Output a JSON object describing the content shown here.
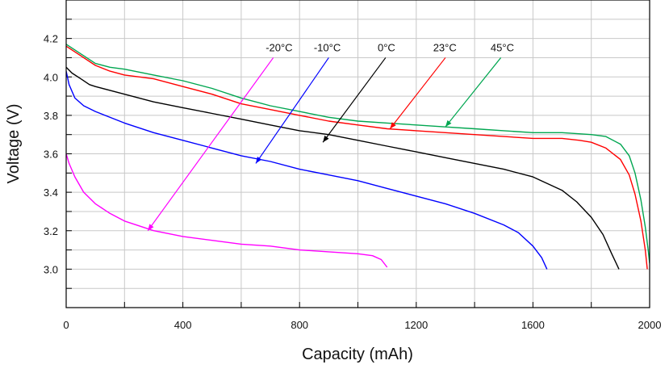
{
  "chart_data": {
    "type": "line",
    "xlabel": "Capacity (mAh)",
    "ylabel": "Voltage (V)",
    "xlim": [
      0,
      2000
    ],
    "ylim": [
      2.8,
      4.4
    ],
    "x_ticks": [
      0,
      400,
      800,
      1200,
      1600,
      2000
    ],
    "x_tick_labels": [
      "0",
      "400",
      "800",
      "1200",
      "1600",
      "2000"
    ],
    "y_ticks": [
      3.0,
      3.2,
      3.4,
      3.6,
      3.8,
      4.0,
      4.2
    ],
    "y_tick_labels": [
      "3.0",
      "3.2",
      "3.4",
      "3.6",
      "3.8",
      "4.0",
      "4.2"
    ],
    "grid": true,
    "series": [
      {
        "name": "-20°C",
        "color": "#ff00ff",
        "points": [
          [
            0,
            3.6
          ],
          [
            10,
            3.55
          ],
          [
            30,
            3.48
          ],
          [
            60,
            3.4
          ],
          [
            100,
            3.34
          ],
          [
            150,
            3.29
          ],
          [
            200,
            3.25
          ],
          [
            300,
            3.2
          ],
          [
            400,
            3.17
          ],
          [
            500,
            3.15
          ],
          [
            600,
            3.13
          ],
          [
            700,
            3.12
          ],
          [
            800,
            3.1
          ],
          [
            900,
            3.09
          ],
          [
            1000,
            3.08
          ],
          [
            1050,
            3.07
          ],
          [
            1080,
            3.05
          ],
          [
            1100,
            3.01
          ]
        ]
      },
      {
        "name": "-10°C",
        "color": "#0000ff",
        "points": [
          [
            0,
            4.03
          ],
          [
            10,
            3.96
          ],
          [
            30,
            3.89
          ],
          [
            60,
            3.85
          ],
          [
            100,
            3.82
          ],
          [
            200,
            3.76
          ],
          [
            300,
            3.71
          ],
          [
            400,
            3.67
          ],
          [
            500,
            3.63
          ],
          [
            600,
            3.59
          ],
          [
            700,
            3.56
          ],
          [
            800,
            3.52
          ],
          [
            900,
            3.49
          ],
          [
            1000,
            3.46
          ],
          [
            1100,
            3.42
          ],
          [
            1200,
            3.38
          ],
          [
            1300,
            3.34
          ],
          [
            1400,
            3.29
          ],
          [
            1500,
            3.23
          ],
          [
            1550,
            3.19
          ],
          [
            1600,
            3.12
          ],
          [
            1630,
            3.06
          ],
          [
            1648,
            3.0
          ]
        ]
      },
      {
        "name": "0°C",
        "color": "#000000",
        "points": [
          [
            0,
            4.05
          ],
          [
            20,
            4.02
          ],
          [
            50,
            3.99
          ],
          [
            80,
            3.96
          ],
          [
            100,
            3.95
          ],
          [
            200,
            3.91
          ],
          [
            300,
            3.87
          ],
          [
            400,
            3.84
          ],
          [
            500,
            3.81
          ],
          [
            600,
            3.78
          ],
          [
            700,
            3.75
          ],
          [
            800,
            3.72
          ],
          [
            900,
            3.7
          ],
          [
            1000,
            3.67
          ],
          [
            1100,
            3.64
          ],
          [
            1200,
            3.61
          ],
          [
            1300,
            3.58
          ],
          [
            1400,
            3.55
          ],
          [
            1500,
            3.52
          ],
          [
            1600,
            3.48
          ],
          [
            1700,
            3.41
          ],
          [
            1750,
            3.35
          ],
          [
            1800,
            3.27
          ],
          [
            1840,
            3.18
          ],
          [
            1870,
            3.08
          ],
          [
            1895,
            3.0
          ]
        ]
      },
      {
        "name": "23°C",
        "color": "#ff0000",
        "points": [
          [
            0,
            4.16
          ],
          [
            50,
            4.11
          ],
          [
            100,
            4.06
          ],
          [
            150,
            4.03
          ],
          [
            200,
            4.01
          ],
          [
            300,
            3.99
          ],
          [
            400,
            3.95
          ],
          [
            500,
            3.91
          ],
          [
            600,
            3.86
          ],
          [
            700,
            3.83
          ],
          [
            800,
            3.8
          ],
          [
            900,
            3.77
          ],
          [
            1000,
            3.75
          ],
          [
            1100,
            3.73
          ],
          [
            1200,
            3.72
          ],
          [
            1300,
            3.71
          ],
          [
            1400,
            3.7
          ],
          [
            1500,
            3.69
          ],
          [
            1600,
            3.68
          ],
          [
            1700,
            3.68
          ],
          [
            1760,
            3.67
          ],
          [
            1800,
            3.66
          ],
          [
            1850,
            3.63
          ],
          [
            1900,
            3.57
          ],
          [
            1930,
            3.49
          ],
          [
            1950,
            3.39
          ],
          [
            1970,
            3.25
          ],
          [
            1985,
            3.1
          ],
          [
            1992,
            3.0
          ]
        ]
      },
      {
        "name": "45°C",
        "color": "#00a650",
        "points": [
          [
            0,
            4.17
          ],
          [
            50,
            4.12
          ],
          [
            100,
            4.07
          ],
          [
            150,
            4.05
          ],
          [
            200,
            4.04
          ],
          [
            300,
            4.01
          ],
          [
            400,
            3.98
          ],
          [
            500,
            3.94
          ],
          [
            600,
            3.89
          ],
          [
            700,
            3.85
          ],
          [
            800,
            3.82
          ],
          [
            900,
            3.79
          ],
          [
            1000,
            3.77
          ],
          [
            1100,
            3.76
          ],
          [
            1200,
            3.75
          ],
          [
            1300,
            3.74
          ],
          [
            1400,
            3.73
          ],
          [
            1500,
            3.72
          ],
          [
            1600,
            3.71
          ],
          [
            1700,
            3.71
          ],
          [
            1800,
            3.7
          ],
          [
            1850,
            3.69
          ],
          [
            1900,
            3.65
          ],
          [
            1930,
            3.59
          ],
          [
            1950,
            3.5
          ],
          [
            1970,
            3.36
          ],
          [
            1985,
            3.22
          ],
          [
            1995,
            3.1
          ],
          [
            2000,
            3.03
          ]
        ]
      }
    ],
    "annotations": [
      {
        "text": "-20°C",
        "color": "#ff00ff",
        "label_at": [
          730,
          4.12
        ],
        "arrow_from": [
          710,
          4.1
        ],
        "arrow_to": [
          280,
          3.2
        ]
      },
      {
        "text": "-10°C",
        "color": "#0000ff",
        "label_at": [
          895,
          4.12
        ],
        "arrow_from": [
          900,
          4.1
        ],
        "arrow_to": [
          650,
          3.55
        ]
      },
      {
        "text": "0°C",
        "color": "#000000",
        "label_at": [
          1098,
          4.12
        ],
        "arrow_from": [
          1095,
          4.1
        ],
        "arrow_to": [
          880,
          3.66
        ]
      },
      {
        "text": "23°C",
        "color": "#ff0000",
        "label_at": [
          1298,
          4.12
        ],
        "arrow_from": [
          1300,
          4.1
        ],
        "arrow_to": [
          1110,
          3.73
        ]
      },
      {
        "text": "45°C",
        "color": "#00a650",
        "label_at": [
          1495,
          4.12
        ],
        "arrow_from": [
          1490,
          4.1
        ],
        "arrow_to": [
          1300,
          3.74
        ]
      }
    ]
  }
}
